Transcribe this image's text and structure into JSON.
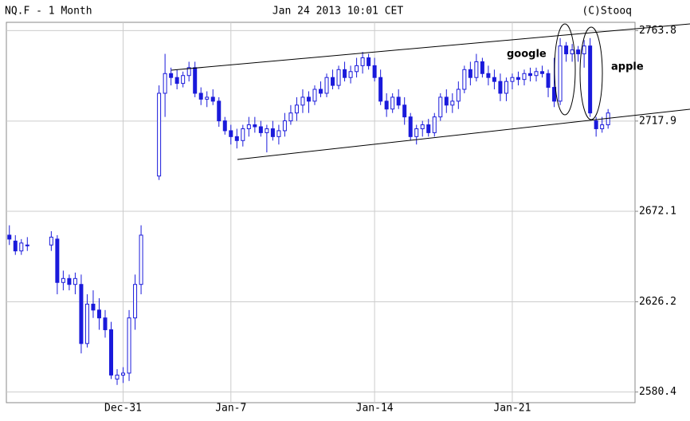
{
  "chart_data": {
    "type": "candlestick",
    "title": "NQ.F - 1 Month",
    "subtitle": "Jan 24 2013 10:01 CET",
    "source": "(C)Stooq",
    "annotations": [
      "google",
      "apple"
    ],
    "color": "#1a1adb",
    "grid": true,
    "ylim": [
      2575,
      2768
    ],
    "yticks": [
      2580.4,
      2626.2,
      2672.1,
      2717.9,
      2763.8
    ],
    "categories": [
      null,
      null,
      null,
      null,
      null,
      null,
      null,
      null,
      null,
      null,
      null,
      null,
      null,
      null,
      null,
      null,
      null,
      null,
      null,
      "Dec-31",
      null,
      null,
      null,
      null,
      null,
      null,
      null,
      null,
      null,
      null,
      null,
      null,
      null,
      null,
      null,
      null,
      null,
      "Jan-7",
      null,
      null,
      null,
      null,
      null,
      null,
      null,
      null,
      null,
      null,
      null,
      null,
      null,
      null,
      null,
      null,
      null,
      null,
      null,
      null,
      null,
      null,
      null,
      "Jan-14",
      null,
      null,
      null,
      null,
      null,
      null,
      null,
      null,
      null,
      null,
      null,
      null,
      null,
      null,
      null,
      null,
      null,
      null,
      null,
      null,
      null,
      null,
      "Jan-21",
      null,
      null,
      null,
      null,
      null,
      null,
      null,
      null,
      null,
      null,
      null,
      null,
      null,
      null,
      null,
      null,
      null,
      null,
      null,
      null
    ],
    "open": [
      2660,
      2657,
      2652,
      2655,
      null,
      null,
      null,
      2655,
      2658,
      2636,
      2638,
      2635,
      2635,
      2605,
      2625,
      2622,
      2618,
      2612,
      2587,
      2589,
      2590,
      2618,
      2635,
      null,
      null,
      2690,
      2732,
      2742,
      2740,
      2737,
      2741,
      2745,
      2732,
      2729,
      2730,
      2728,
      2718,
      2713,
      2710,
      2708,
      2714,
      2716,
      2715,
      2712,
      2714,
      2710,
      2713,
      2718,
      2722,
      2726,
      2730,
      2728,
      2734,
      2732,
      2740,
      2736,
      2744,
      2740,
      2743,
      2746,
      2750,
      2746,
      2740,
      2728,
      2724,
      2730,
      2726,
      2720,
      2710,
      2714,
      2716,
      2712,
      2720,
      2730,
      2726,
      2728,
      2734,
      2744,
      2740,
      2748,
      2742,
      2740,
      2738,
      2732,
      2738,
      2740,
      2739,
      2742,
      2741,
      2743,
      2742,
      2735,
      2728,
      2756,
      2752,
      2754,
      2752,
      2756,
      2718,
      2714,
      2716,
      null,
      null,
      null,
      null
    ],
    "high": [
      2665,
      2660,
      2658,
      2659,
      null,
      null,
      null,
      2662,
      2660,
      2642,
      2640,
      2641,
      2640,
      2630,
      2632,
      2628,
      2622,
      2616,
      2592,
      2593,
      2622,
      2640,
      2665,
      null,
      null,
      2736,
      2752,
      2745,
      2744,
      2743,
      2748,
      2748,
      2735,
      2733,
      2734,
      2730,
      2720,
      2716,
      2714,
      2716,
      2720,
      2720,
      2718,
      2716,
      2718,
      2716,
      2722,
      2726,
      2730,
      2734,
      2733,
      2736,
      2738,
      2742,
      2744,
      2746,
      2748,
      2746,
      2750,
      2753,
      2752,
      2750,
      2744,
      2732,
      2732,
      2734,
      2730,
      2722,
      2716,
      2718,
      2719,
      2722,
      2732,
      2734,
      2732,
      2738,
      2746,
      2748,
      2752,
      2750,
      2746,
      2744,
      2742,
      2740,
      2742,
      2743,
      2744,
      2745,
      2745,
      2746,
      2744,
      2750,
      2760,
      2758,
      2757,
      2756,
      2759,
      2760,
      2720,
      2720,
      2724,
      null,
      null,
      null,
      null
    ],
    "low": [
      2655,
      2650,
      2650,
      2652,
      null,
      null,
      null,
      2652,
      2630,
      2632,
      2632,
      2630,
      2600,
      2603,
      2618,
      2612,
      2608,
      2587,
      2584,
      2585,
      2586,
      2612,
      2630,
      null,
      null,
      2688,
      2720,
      2736,
      2734,
      2735,
      2738,
      2730,
      2726,
      2725,
      2726,
      2715,
      2711,
      2706,
      2704,
      2705,
      2710,
      2712,
      2710,
      2702,
      2708,
      2706,
      2710,
      2716,
      2718,
      2722,
      2722,
      2726,
      2730,
      2730,
      2734,
      2734,
      2738,
      2737,
      2740,
      2742,
      2744,
      2738,
      2726,
      2720,
      2722,
      2724,
      2716,
      2708,
      2706,
      2710,
      2710,
      2710,
      2718,
      2722,
      2722,
      2724,
      2732,
      2736,
      2738,
      2740,
      2736,
      2734,
      2728,
      2728,
      2734,
      2736,
      2736,
      2738,
      2738,
      2740,
      2730,
      2725,
      2726,
      2748,
      2748,
      2748,
      2745,
      2720,
      2710,
      2712,
      2714,
      null,
      null,
      null,
      null
    ],
    "close": [
      2658,
      2652,
      2656,
      2655,
      null,
      null,
      null,
      2659,
      2636,
      2638,
      2635,
      2638,
      2605,
      2625,
      2622,
      2618,
      2612,
      2589,
      2589,
      2590,
      2618,
      2635,
      2660,
      null,
      null,
      2732,
      2742,
      2740,
      2737,
      2741,
      2745,
      2732,
      2729,
      2730,
      2728,
      2718,
      2713,
      2710,
      2708,
      2714,
      2716,
      2715,
      2712,
      2714,
      2710,
      2713,
      2718,
      2722,
      2726,
      2730,
      2728,
      2734,
      2732,
      2740,
      2736,
      2744,
      2740,
      2743,
      2746,
      2750,
      2746,
      2740,
      2728,
      2724,
      2730,
      2726,
      2720,
      2710,
      2714,
      2716,
      2712,
      2720,
      2730,
      2726,
      2728,
      2734,
      2744,
      2740,
      2748,
      2742,
      2740,
      2738,
      2732,
      2738,
      2740,
      2739,
      2742,
      2741,
      2743,
      2742,
      2735,
      2728,
      2756,
      2752,
      2754,
      2752,
      2756,
      2722,
      2714,
      2716,
      2722,
      null,
      null,
      null,
      null
    ]
  }
}
